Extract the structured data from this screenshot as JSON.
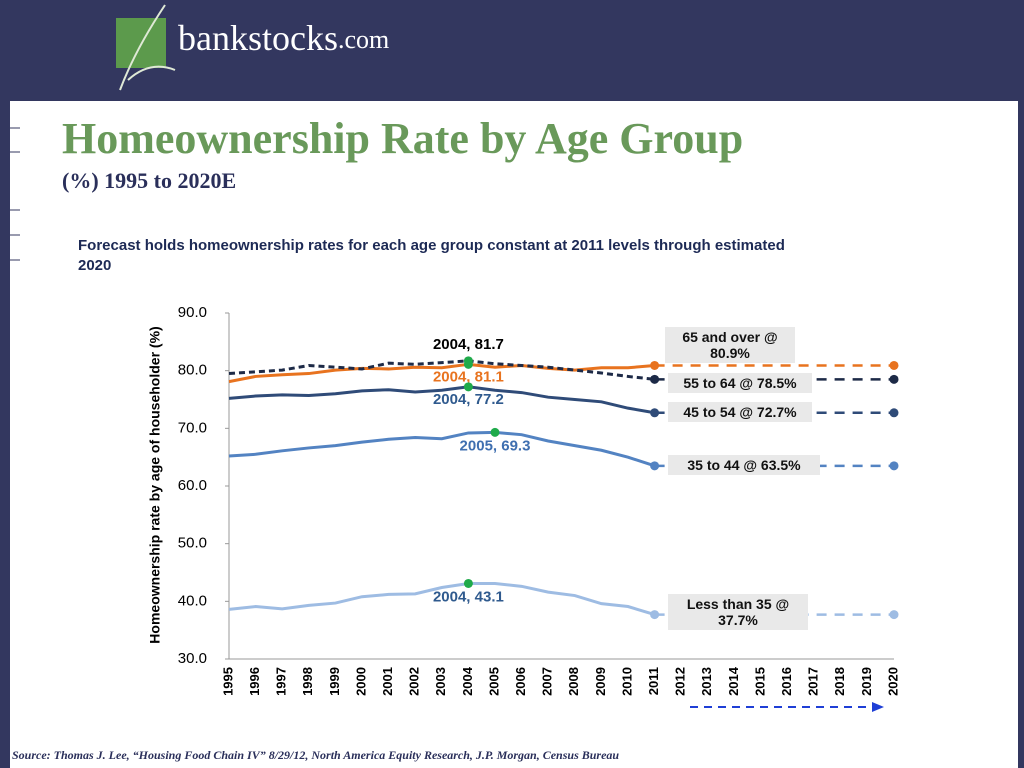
{
  "logo": {
    "name": "bankstocks",
    "suffix": ".com"
  },
  "source": "Source: Thomas J. Lee, “Housing Food Chain IV” 8/29/12, North America Equity Research, J.P. Morgan, Census Bureau",
  "chart_data": {
    "type": "line",
    "title": "Homeownership Rate by Age Group",
    "subtitle": "(%) 1995 to 2020E",
    "note": "Forecast holds homeownership rates for each age group constant at 2011 levels through estimated 2020",
    "y_label": "Homeownership rate by age of householder (%)",
    "categories": [
      "1995",
      "1996",
      "1997",
      "1998",
      "1999",
      "2000",
      "2001",
      "2002",
      "2003",
      "2004",
      "2005",
      "2006",
      "2007",
      "2008",
      "2009",
      "2010",
      "2011",
      "2012",
      "2013",
      "2014",
      "2015",
      "2016",
      "2017",
      "2018",
      "2019",
      "2020"
    ],
    "ylim": [
      30,
      90
    ],
    "yticks": [
      {
        "value": 30,
        "label": "30.0"
      },
      {
        "value": 40,
        "label": "40.0"
      },
      {
        "value": 50,
        "label": "50.0"
      },
      {
        "value": 60,
        "label": "60.0"
      },
      {
        "value": 70,
        "label": "70.0"
      },
      {
        "value": 80,
        "label": "80.0"
      },
      {
        "value": 90,
        "label": "90.0"
      }
    ],
    "series": [
      {
        "name": "65 and over @ 80.9%",
        "color": "#e8731f",
        "line_style": "solid",
        "values": [
          78.1,
          79.0,
          79.3,
          79.5,
          80.1,
          80.4,
          80.3,
          80.6,
          80.5,
          81.1,
          80.6,
          80.9,
          80.4,
          80.1,
          80.5,
          80.5,
          80.9,
          null,
          null,
          null,
          null,
          null,
          null,
          null,
          null,
          80.9
        ]
      },
      {
        "name": "55 to 64 @ 78.5%",
        "color": "#1d2a47",
        "line_style": "dashed",
        "values": [
          79.5,
          79.8,
          80.1,
          80.9,
          80.6,
          80.3,
          81.3,
          81.1,
          81.4,
          81.7,
          81.2,
          80.9,
          80.6,
          80.1,
          79.6,
          79.0,
          78.5,
          null,
          null,
          null,
          null,
          null,
          null,
          null,
          null,
          78.5
        ]
      },
      {
        "name": "45 to 54 @ 72.7%",
        "color": "#2f4b78",
        "line_style": "solid",
        "values": [
          75.2,
          75.6,
          75.8,
          75.7,
          76.0,
          76.5,
          76.7,
          76.3,
          76.6,
          77.2,
          76.6,
          76.2,
          75.4,
          75.0,
          74.6,
          73.5,
          72.7,
          null,
          null,
          null,
          null,
          null,
          null,
          null,
          null,
          72.7
        ]
      },
      {
        "name": "35 to 44 @ 63.5%",
        "color": "#5383c2",
        "line_style": "solid",
        "values": [
          65.2,
          65.5,
          66.1,
          66.6,
          67.0,
          67.6,
          68.1,
          68.4,
          68.2,
          69.2,
          69.3,
          68.9,
          67.8,
          67.0,
          66.2,
          65.0,
          63.5,
          null,
          null,
          null,
          null,
          null,
          null,
          null,
          null,
          63.5
        ]
      },
      {
        "name": "Less than 35  @ 37.7%",
        "color": "#9ebce3",
        "line_style": "solid",
        "values": [
          38.6,
          39.1,
          38.7,
          39.3,
          39.7,
          40.8,
          41.2,
          41.3,
          42.4,
          43.1,
          43.1,
          42.6,
          41.6,
          41.0,
          39.6,
          39.1,
          37.7,
          null,
          null,
          null,
          null,
          null,
          null,
          null,
          null,
          37.7
        ]
      }
    ],
    "annotations": [
      {
        "text": "2004, 81.7",
        "x": "2004",
        "y": 81.7,
        "color": "#000000"
      },
      {
        "text": "2004, 81.1",
        "x": "2004",
        "y": 81.1,
        "color": "#e8731f"
      },
      {
        "text": "2004, 77.2",
        "x": "2004",
        "y": 77.2,
        "color": "#2f5a8e"
      },
      {
        "text": "2005, 69.3",
        "x": "2005",
        "y": 69.3,
        "color": "#3f6fb0"
      },
      {
        "text": "2004, 43.1",
        "x": "2004",
        "y": 43.1,
        "color": "#2f5a8e"
      }
    ],
    "marker_color": "#1faa4a"
  }
}
